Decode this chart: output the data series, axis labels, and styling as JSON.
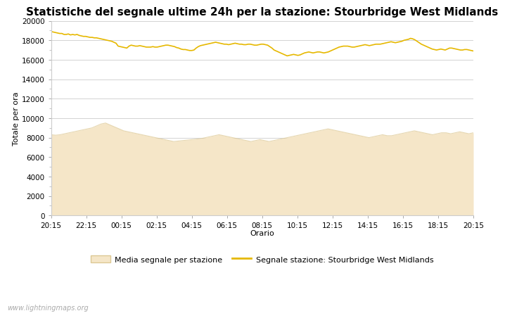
{
  "title": "Statistiche del segnale ultime 24h per la stazione: Stourbridge West Midlands",
  "xlabel": "Orario",
  "ylabel": "Totale per ora",
  "x_ticks": [
    "20:15",
    "22:15",
    "00:15",
    "02:15",
    "04:15",
    "06:15",
    "08:15",
    "10:15",
    "12:15",
    "14:15",
    "16:15",
    "18:15",
    "20:15"
  ],
  "ylim": [
    0,
    20000
  ],
  "yticks": [
    0,
    2000,
    4000,
    6000,
    8000,
    10000,
    12000,
    14000,
    16000,
    18000,
    20000
  ],
  "fill_color": "#f5e6c8",
  "fill_edge_color": "#dcc894",
  "line_color": "#e6b800",
  "line_width": 1.2,
  "background_color": "#ffffff",
  "grid_color": "#cccccc",
  "title_fontsize": 11,
  "axis_label_fontsize": 8,
  "tick_fontsize": 7.5,
  "watermark": "www.lightningmaps.org",
  "legend_fill_label": "Media segnale per stazione",
  "legend_line_label": "Segnale stazione: Stourbridge West Midlands",
  "avg_signal": [
    8300,
    8250,
    8300,
    8400,
    8500,
    8600,
    8700,
    8800,
    8900,
    9000,
    9200,
    9400,
    9500,
    9300,
    9100,
    8900,
    8700,
    8600,
    8500,
    8400,
    8300,
    8200,
    8100,
    8000,
    7900,
    7800,
    7700,
    7600,
    7650,
    7700,
    7750,
    7800,
    7850,
    7900,
    8000,
    8100,
    8200,
    8300,
    8200,
    8100,
    8000,
    7900,
    7800,
    7700,
    7600,
    7700,
    7800,
    7700,
    7600,
    7700,
    7800,
    7900,
    8000,
    8100,
    8200,
    8300,
    8400,
    8500,
    8600,
    8700,
    8800,
    8900,
    8800,
    8700,
    8600,
    8500,
    8400,
    8300,
    8200,
    8100,
    8000,
    8100,
    8200,
    8300,
    8200,
    8200,
    8300,
    8400,
    8500,
    8600,
    8700,
    8600,
    8500,
    8400,
    8300,
    8400,
    8500,
    8500,
    8400,
    8500,
    8600,
    8500,
    8400,
    8500
  ],
  "station_signal": [
    18900,
    18850,
    18800,
    18750,
    18700,
    18700,
    18600,
    18600,
    18650,
    18550,
    18600,
    18550,
    18600,
    18500,
    18450,
    18400,
    18400,
    18350,
    18300,
    18300,
    18250,
    18250,
    18200,
    18150,
    18100,
    18050,
    18000,
    17950,
    17900,
    17800,
    17700,
    17400,
    17350,
    17300,
    17250,
    17200,
    17400,
    17500,
    17450,
    17400,
    17400,
    17450,
    17400,
    17350,
    17300,
    17300,
    17300,
    17350,
    17300,
    17300,
    17350,
    17400,
    17450,
    17500,
    17500,
    17450,
    17400,
    17350,
    17250,
    17200,
    17100,
    17050,
    17050,
    17000,
    16950,
    16950,
    17000,
    17200,
    17350,
    17450,
    17500,
    17550,
    17600,
    17650,
    17700,
    17750,
    17800,
    17750,
    17700,
    17650,
    17600,
    17600,
    17550,
    17600,
    17650,
    17700,
    17650,
    17600,
    17600,
    17550,
    17550,
    17600,
    17600,
    17550,
    17500,
    17500,
    17550,
    17600,
    17600,
    17550,
    17500,
    17350,
    17200,
    17000,
    16900,
    16800,
    16700,
    16600,
    16500,
    16400,
    16450,
    16500,
    16550,
    16500,
    16450,
    16500,
    16600,
    16700,
    16750,
    16800,
    16750,
    16700,
    16750,
    16800,
    16800,
    16750,
    16700,
    16750,
    16800,
    16900,
    17000,
    17100,
    17200,
    17300,
    17350,
    17400,
    17400,
    17400,
    17350,
    17300,
    17300,
    17350,
    17400,
    17450,
    17500,
    17550,
    17500,
    17450,
    17500,
    17550,
    17600,
    17600,
    17600,
    17650,
    17700,
    17750,
    17800,
    17850,
    17800,
    17750,
    17800,
    17850,
    17900,
    18000,
    18050,
    18100,
    18200,
    18150,
    18050,
    17900,
    17750,
    17600,
    17500,
    17400,
    17300,
    17200,
    17100,
    17050,
    17000,
    17050,
    17100,
    17050,
    17000,
    17100,
    17200,
    17200,
    17150,
    17100,
    17050,
    17000,
    17000,
    17050,
    17050,
    17000,
    16950,
    16900
  ]
}
